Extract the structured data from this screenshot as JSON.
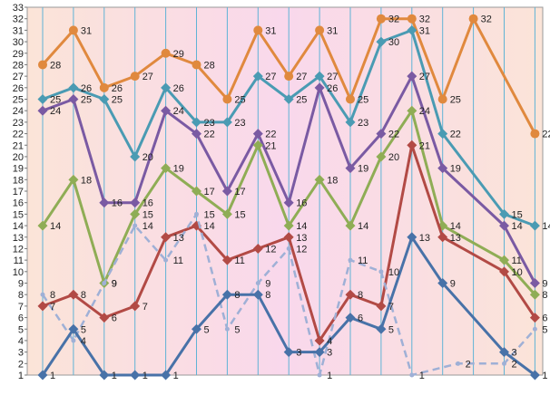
{
  "chart_data": {
    "type": "line",
    "title": "",
    "xlabel": "",
    "ylabel": "",
    "ylim": [
      1,
      33
    ],
    "y_ticks": [
      1,
      2,
      3,
      4,
      5,
      6,
      7,
      8,
      9,
      10,
      11,
      12,
      13,
      14,
      15,
      16,
      17,
      18,
      19,
      20,
      21,
      22,
      23,
      24,
      25,
      26,
      27,
      28,
      29,
      30,
      31,
      32,
      33
    ],
    "num_points": 17,
    "grid": "vertical",
    "legend": "none",
    "background": {
      "left": "#fbe4d8",
      "middle": "#f9d8ec",
      "right": "#fbe4d8"
    },
    "series": [
      {
        "color": "#e0893e",
        "style": "solid",
        "labeled": true,
        "values": [
          28,
          31,
          26,
          27,
          29,
          28,
          25,
          31,
          27,
          31,
          25,
          32,
          32,
          25,
          32,
          22
        ],
        "x": [
          0,
          1,
          2,
          3,
          4,
          5,
          6,
          7,
          8,
          9,
          10,
          11,
          12,
          13,
          14,
          16
        ]
      },
      {
        "color": "#4a9bb3",
        "style": "solid",
        "labeled": true,
        "values": [
          25,
          26,
          25,
          20,
          26,
          23,
          23,
          27,
          25,
          27,
          23,
          30,
          31,
          22,
          15,
          14
        ],
        "x": [
          0,
          1,
          2,
          3,
          4,
          5,
          6,
          7,
          8,
          9,
          10,
          11,
          12,
          13,
          15,
          16
        ]
      },
      {
        "color": "#7a5aa3",
        "style": "solid",
        "labeled": true,
        "values": [
          24,
          25,
          16,
          16,
          24,
          22,
          17,
          22,
          16,
          26,
          19,
          22,
          27,
          19,
          14,
          9
        ],
        "x": [
          0,
          1,
          2,
          3,
          4,
          5,
          6,
          7,
          8,
          9,
          10,
          11,
          12,
          13,
          15,
          16
        ]
      },
      {
        "color": "#8fad55",
        "style": "solid",
        "labeled": true,
        "values": [
          14,
          18,
          9,
          15,
          19,
          17,
          15,
          21,
          14,
          18,
          14,
          20,
          24,
          14,
          11,
          8
        ],
        "x": [
          0,
          1,
          2,
          3,
          4,
          5,
          6,
          7,
          8,
          9,
          10,
          11,
          12,
          13,
          15,
          16
        ]
      },
      {
        "color": "#b24a45",
        "style": "solid",
        "labeled": true,
        "values": [
          7,
          8,
          6,
          7,
          13,
          14,
          11,
          12,
          13,
          4,
          8,
          7,
          21,
          13,
          10,
          6
        ],
        "x": [
          0,
          1,
          2,
          3,
          4,
          5,
          6,
          7,
          8,
          9,
          10,
          11,
          12,
          13,
          15,
          16
        ]
      },
      {
        "color": "#9fb0d6",
        "style": "dashed",
        "labeled": true,
        "values": [
          8,
          4,
          9,
          14,
          11,
          15,
          5,
          9,
          12,
          1,
          11,
          10,
          1,
          2,
          2,
          5
        ],
        "x": [
          0,
          1,
          2,
          3,
          4,
          5,
          6,
          7,
          8,
          9,
          10,
          11,
          12,
          13.5,
          15,
          16
        ]
      },
      {
        "color": "#4872a8",
        "style": "solid",
        "labeled": true,
        "values": [
          1,
          5,
          1,
          1,
          1,
          5,
          8,
          8,
          3,
          3,
          6,
          5,
          13,
          9,
          3,
          1
        ],
        "x": [
          0,
          1,
          2,
          3,
          4,
          5,
          6,
          7,
          8,
          9,
          10,
          11,
          12,
          13,
          15,
          16
        ]
      }
    ],
    "data_labels": {
      "orange": [
        "28",
        "31",
        "26",
        "27",
        "29",
        "28",
        "25",
        "31",
        "27",
        "31",
        "25",
        "32",
        "32",
        "25",
        "32",
        "22"
      ],
      "teal": [
        "25",
        "26",
        "25",
        "20",
        "26",
        "23",
        "23",
        "27",
        "25",
        "27",
        "23",
        "30",
        "31",
        "22",
        "15",
        "14"
      ],
      "purple": [
        "24",
        "25",
        "16",
        "16",
        "24",
        "22",
        "17",
        "22",
        "16",
        "26",
        "19",
        "22",
        "27",
        "19",
        "14",
        "9"
      ],
      "green": [
        "14",
        "18",
        "9",
        "15",
        "19",
        "17",
        "15",
        "21",
        "14",
        "18",
        "14",
        "20",
        "24",
        "14",
        "11",
        "8"
      ],
      "red": [
        "7",
        "8",
        "6",
        "7",
        "13",
        "14",
        "11",
        "12",
        "13",
        "4",
        "8",
        "7",
        "21",
        "13",
        "10",
        "6"
      ],
      "dashed": [
        "8",
        "4",
        "9",
        "14",
        "11",
        "15",
        "5",
        "9",
        "12",
        "1",
        "11",
        "10",
        "1",
        "2",
        "2",
        "5"
      ],
      "blue": [
        "1",
        "5",
        "1",
        "1",
        "1",
        "5",
        "8",
        "8",
        "3",
        "3",
        "6",
        "5",
        "13",
        "9",
        "3",
        "1"
      ]
    }
  }
}
